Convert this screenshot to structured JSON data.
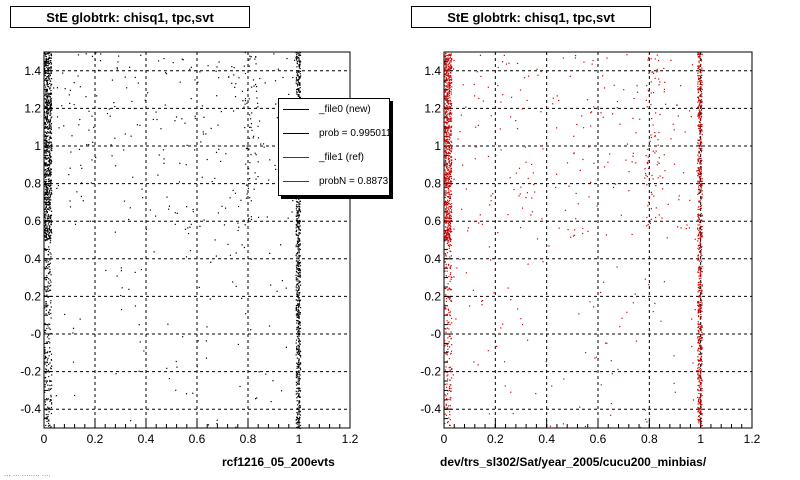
{
  "panels": {
    "left": {
      "title": "StE globtrk: chisq1, tpc,svt",
      "xcaption": "rcf1216_05_200evts"
    },
    "right": {
      "title": "StE globtrk: chisq1, tpc,svt",
      "xcaption": "dev/trs_sl302/Sat/year_2005/cucu200_minbias/"
    }
  },
  "legend": {
    "entries": [
      {
        "label": "_file0 (new)",
        "color": "#000000"
      },
      {
        "label": "prob = 0.995011",
        "color": "#000000"
      },
      {
        "label": "_file1 (ref)",
        "color": "#cc0000"
      },
      {
        "label": "probN = 0.88731",
        "color": "#cc0000"
      }
    ]
  },
  "footer_text": "... ... ........ ....",
  "chart_data": [
    {
      "type": "scatter",
      "title": "StE globtrk: chisq1, tpc,svt",
      "xlabel": "rcf1216_05_200evts",
      "ylabel": "",
      "xlim": [
        0,
        1.2
      ],
      "ylim": [
        -0.5,
        1.5
      ],
      "x_ticks": [
        "0",
        "0.2",
        "0.4",
        "0.6",
        "0.8",
        "1",
        "1.2"
      ],
      "y_ticks": [
        "-0.4",
        "-0.2",
        "-0",
        "0.2",
        "0.4",
        "0.6",
        "0.8",
        "1",
        "1.2",
        "1.4"
      ],
      "grid": true,
      "point_color": "#000000",
      "series": [
        {
          "name": "_file0 (new)",
          "description_points": "dense band at x≈0.00–0.03 for y in [-0.5,1.5] (densest y 0.5–1.5); dense band at x≈0.99–1.00 for y in [-0.5,1.5]; sparse scatter elsewhere mainly y 0.5–1.5"
        }
      ],
      "dense_bands": [
        {
          "x": [
            0.0,
            0.03
          ],
          "y": [
            -0.5,
            1.5
          ],
          "density": "high"
        },
        {
          "x": [
            0.985,
            1.005
          ],
          "y": [
            -0.5,
            1.5
          ],
          "density": "high"
        }
      ]
    },
    {
      "type": "scatter",
      "title": "StE globtrk: chisq1, tpc,svt",
      "xlabel": "dev/trs_sl302/Sat/year_2005/cucu200_minbias/",
      "ylabel": "",
      "xlim": [
        0,
        1.2
      ],
      "ylim": [
        -0.5,
        1.5
      ],
      "x_ticks": [
        "0",
        "0.2",
        "0.4",
        "0.6",
        "0.8",
        "1",
        "1.2"
      ],
      "y_ticks": [
        "-0.4",
        "-0.2",
        "-0",
        "0.2",
        "0.4",
        "0.6",
        "0.8",
        "1",
        "1.2",
        "1.4"
      ],
      "grid": true,
      "point_color": "#cc0000",
      "series": [
        {
          "name": "_file1 (ref)",
          "description_points": "dense band at x≈0.00–0.03 for y in [-0.5,1.5] (densest y 0.5–1.5); dense band at x≈0.99–1.00; sparse scatter elsewhere mainly y 0.5–1.5"
        }
      ],
      "dense_bands": [
        {
          "x": [
            0.0,
            0.03
          ],
          "y": [
            -0.5,
            1.5
          ],
          "density": "high"
        },
        {
          "x": [
            0.985,
            1.005
          ],
          "y": [
            -0.5,
            1.5
          ],
          "density": "high"
        }
      ]
    }
  ]
}
